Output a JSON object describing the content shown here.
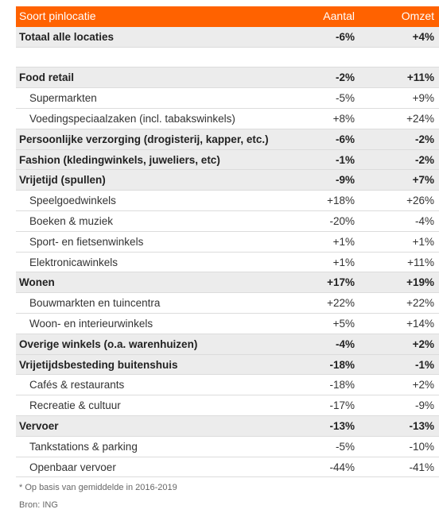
{
  "header": {
    "label": "Soort pinlocatie",
    "aantal": "Aantal",
    "omzet": "Omzet"
  },
  "total": {
    "label": "Totaal alle locaties",
    "aantal": "-6%",
    "omzet": "+4%"
  },
  "sections": [
    {
      "label": "Food retail",
      "aantal": "-2%",
      "omzet": "+11%",
      "items": [
        {
          "label": "Supermarkten",
          "aantal": "-5%",
          "omzet": "+9%"
        },
        {
          "label": "Voedingspeciaalzaken (incl. tabakswinkels)",
          "aantal": "+8%",
          "omzet": "+24%"
        }
      ]
    },
    {
      "label": "Persoonlijke verzorging (drogisterij, kapper, etc.)",
      "aantal": "-6%",
      "omzet": "-2%",
      "items": []
    },
    {
      "label": "Fashion (kledingwinkels, juweliers, etc)",
      "aantal": "-1%",
      "omzet": "-2%",
      "items": []
    },
    {
      "label": "Vrijetijd (spullen)",
      "aantal": "-9%",
      "omzet": "+7%",
      "items": [
        {
          "label": "Speelgoedwinkels",
          "aantal": "+18%",
          "omzet": "+26%"
        },
        {
          "label": "Boeken & muziek",
          "aantal": "-20%",
          "omzet": "-4%"
        },
        {
          "label": "Sport- en fietsenwinkels",
          "aantal": "+1%",
          "omzet": "+1%"
        },
        {
          "label": "Elektronicawinkels",
          "aantal": "+1%",
          "omzet": "+11%"
        }
      ]
    },
    {
      "label": "Wonen",
      "aantal": "+17%",
      "omzet": "+19%",
      "items": [
        {
          "label": "Bouwmarkten en tuincentra",
          "aantal": "+22%",
          "omzet": "+22%"
        },
        {
          "label": "Woon- en interieurwinkels",
          "aantal": "+5%",
          "omzet": "+14%"
        }
      ]
    },
    {
      "label": "Overige winkels (o.a. warenhuizen)",
      "aantal": "-4%",
      "omzet": "+2%",
      "items": []
    },
    {
      "label": "Vrijetijdsbesteding buitenshuis",
      "aantal": "-18%",
      "omzet": "-1%",
      "items": [
        {
          "label": "Cafés & restaurants",
          "aantal": "-18%",
          "omzet": "+2%"
        },
        {
          "label": "Recreatie & cultuur",
          "aantal": "-17%",
          "omzet": "-9%"
        }
      ]
    },
    {
      "label": "Vervoer",
      "aantal": "-13%",
      "omzet": "-13%",
      "items": [
        {
          "label": "Tankstations & parking",
          "aantal": "-5%",
          "omzet": "-10%"
        },
        {
          "label": "Openbaar vervoer",
          "aantal": "-44%",
          "omzet": "-41%"
        }
      ]
    }
  ],
  "footnote": "* Op basis van gemiddelde  in 2016-2019",
  "source": "Bron: ING"
}
